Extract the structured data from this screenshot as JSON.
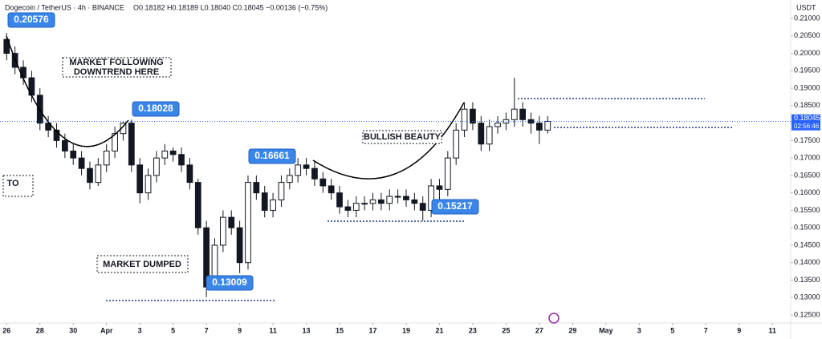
{
  "header": {
    "symbol": "Dogecoin / TetherUS · 4h · BINANCE",
    "ohlc": "O0.18182 H0.18189 L0.18040 C0.18045 −0.00136 (−0.75%)"
  },
  "chart_data": {
    "type": "candlestick",
    "currency": "USDT",
    "up_color": "#ffffff",
    "down_color": "#131722",
    "outline_color": "#131722",
    "x": [
      0,
      0.5,
      1,
      1.5,
      2,
      2.5,
      3,
      3.5,
      4,
      4.5,
      5,
      5.5,
      6,
      6.5,
      7,
      7.5,
      8,
      8.5,
      9,
      9.5,
      10,
      10.5,
      11,
      11.5,
      12,
      12.5,
      13,
      13.5,
      14,
      14.5,
      15,
      15.5,
      16,
      16.5,
      17,
      17.5,
      18,
      18.5,
      19,
      19.5,
      20,
      20.5,
      21,
      21.5,
      22,
      22.5,
      23,
      23.5,
      24,
      24.5,
      25,
      25.5,
      26,
      26.5,
      27,
      27.5,
      28,
      28.5,
      29,
      29.5,
      30,
      30.5,
      31,
      31.5,
      32,
      32.5
    ],
    "open": [
      0.204,
      0.2,
      0.196,
      0.193,
      0.188,
      0.18,
      0.178,
      0.175,
      0.172,
      0.17,
      0.167,
      0.163,
      0.168,
      0.172,
      0.177,
      0.18,
      0.168,
      0.16,
      0.165,
      0.17,
      0.172,
      0.171,
      0.168,
      0.163,
      0.15,
      0.133,
      0.145,
      0.153,
      0.15,
      0.14,
      0.163,
      0.16,
      0.155,
      0.158,
      0.163,
      0.165,
      0.168,
      0.167,
      0.164,
      0.162,
      0.16,
      0.156,
      0.155,
      0.157,
      0.157,
      0.158,
      0.157,
      0.159,
      0.159,
      0.158,
      0.157,
      0.155,
      0.162,
      0.161,
      0.17,
      0.178,
      0.184,
      0.18,
      0.174,
      0.179,
      0.18,
      0.181,
      0.184,
      0.181,
      0.18,
      0.178
    ],
    "high": [
      0.2058,
      0.202,
      0.198,
      0.195,
      0.19,
      0.182,
      0.18,
      0.177,
      0.174,
      0.172,
      0.169,
      0.17,
      0.174,
      0.179,
      0.1803,
      0.181,
      0.17,
      0.167,
      0.172,
      0.174,
      0.173,
      0.173,
      0.17,
      0.164,
      0.152,
      0.147,
      0.155,
      0.155,
      0.152,
      0.165,
      0.165,
      0.162,
      0.16,
      0.165,
      0.167,
      0.17,
      0.17,
      0.169,
      0.166,
      0.164,
      0.162,
      0.158,
      0.159,
      0.159,
      0.16,
      0.16,
      0.161,
      0.161,
      0.161,
      0.16,
      0.159,
      0.164,
      0.164,
      0.172,
      0.18,
      0.186,
      0.186,
      0.182,
      0.181,
      0.182,
      0.183,
      0.193,
      0.186,
      0.183,
      0.182,
      0.182
    ],
    "low": [
      0.198,
      0.194,
      0.191,
      0.186,
      0.178,
      0.176,
      0.173,
      0.17,
      0.168,
      0.165,
      0.161,
      0.162,
      0.166,
      0.17,
      0.175,
      0.166,
      0.157,
      0.158,
      0.163,
      0.168,
      0.169,
      0.166,
      0.161,
      0.148,
      0.1301,
      0.132,
      0.143,
      0.148,
      0.137,
      0.138,
      0.158,
      0.153,
      0.153,
      0.156,
      0.161,
      0.163,
      0.165,
      0.162,
      0.16,
      0.158,
      0.154,
      0.153,
      0.153,
      0.155,
      0.155,
      0.155,
      0.155,
      0.157,
      0.156,
      0.155,
      0.152,
      0.153,
      0.158,
      0.159,
      0.168,
      0.176,
      0.178,
      0.172,
      0.172,
      0.177,
      0.178,
      0.179,
      0.179,
      0.177,
      0.174,
      0.177
    ],
    "close": [
      0.2,
      0.196,
      0.193,
      0.188,
      0.18,
      0.178,
      0.175,
      0.172,
      0.17,
      0.167,
      0.163,
      0.168,
      0.172,
      0.177,
      0.18,
      0.168,
      0.16,
      0.165,
      0.17,
      0.172,
      0.171,
      0.168,
      0.163,
      0.15,
      0.133,
      0.145,
      0.153,
      0.15,
      0.14,
      0.163,
      0.16,
      0.155,
      0.158,
      0.163,
      0.165,
      0.168,
      0.167,
      0.164,
      0.162,
      0.16,
      0.156,
      0.155,
      0.157,
      0.157,
      0.158,
      0.157,
      0.159,
      0.159,
      0.158,
      0.157,
      0.155,
      0.162,
      0.161,
      0.17,
      0.178,
      0.184,
      0.18,
      0.174,
      0.179,
      0.18,
      0.181,
      0.184,
      0.181,
      0.18,
      0.178,
      0.1805
    ],
    "xlim": [
      -0.4,
      47.1
    ],
    "ylim": [
      0.1227,
      0.2153
    ],
    "xticks": [
      {
        "value": 0,
        "label": "26"
      },
      {
        "value": 2,
        "label": "28"
      },
      {
        "value": 4,
        "label": "30"
      },
      {
        "value": 6,
        "label": "Apr"
      },
      {
        "value": 8,
        "label": "3"
      },
      {
        "value": 10,
        "label": "5"
      },
      {
        "value": 12,
        "label": "7"
      },
      {
        "value": 14,
        "label": "9"
      },
      {
        "value": 16,
        "label": "11"
      },
      {
        "value": 18,
        "label": "13"
      },
      {
        "value": 20,
        "label": "15"
      },
      {
        "value": 22,
        "label": "17"
      },
      {
        "value": 24,
        "label": "19"
      },
      {
        "value": 26,
        "label": "21"
      },
      {
        "value": 28,
        "label": "23"
      },
      {
        "value": 30,
        "label": "25"
      },
      {
        "value": 32,
        "label": "27"
      },
      {
        "value": 34,
        "label": "29"
      },
      {
        "value": 36,
        "label": "May"
      },
      {
        "value": 38,
        "label": "3"
      },
      {
        "value": 40,
        "label": "5"
      },
      {
        "value": 42,
        "label": "7"
      },
      {
        "value": 44,
        "label": "9"
      },
      {
        "value": 46,
        "label": "11"
      }
    ],
    "yticks": [
      {
        "value": 0.125,
        "label": "0.12500"
      },
      {
        "value": 0.13,
        "label": "0.13000"
      },
      {
        "value": 0.135,
        "label": "0.13500"
      },
      {
        "value": 0.14,
        "label": "0.14000"
      },
      {
        "value": 0.145,
        "label": "0.14500"
      },
      {
        "value": 0.15,
        "label": "0.15000"
      },
      {
        "value": 0.155,
        "label": "0.15500"
      },
      {
        "value": 0.16,
        "label": "0.16000"
      },
      {
        "value": 0.165,
        "label": "0.16500"
      },
      {
        "value": 0.17,
        "label": "0.17000"
      },
      {
        "value": 0.175,
        "label": "0.17500"
      },
      {
        "value": 0.18,
        "label": "0.18000"
      },
      {
        "value": 0.185,
        "label": "0.18500"
      },
      {
        "value": 0.19,
        "label": "0.19000"
      },
      {
        "value": 0.195,
        "label": "0.19500"
      },
      {
        "value": 0.2,
        "label": "0.20000"
      },
      {
        "value": 0.205,
        "label": "0.20500"
      },
      {
        "value": 0.21,
        "label": "0.21000"
      }
    ],
    "last_price": {
      "value": 0.18045,
      "label": "0.18045",
      "countdown": "02:56:46"
    },
    "callouts": [
      "0.20576",
      "0.18028",
      "0.16661",
      "0.13009",
      "0.15217"
    ],
    "notes": {
      "downtrend": [
        "MARKET FOLLOWING",
        "DOWNTREND HERE"
      ],
      "bullish": "BULLISH BEAUTY",
      "dumped": "MARKET DUMPED",
      "left": "TO"
    }
  }
}
